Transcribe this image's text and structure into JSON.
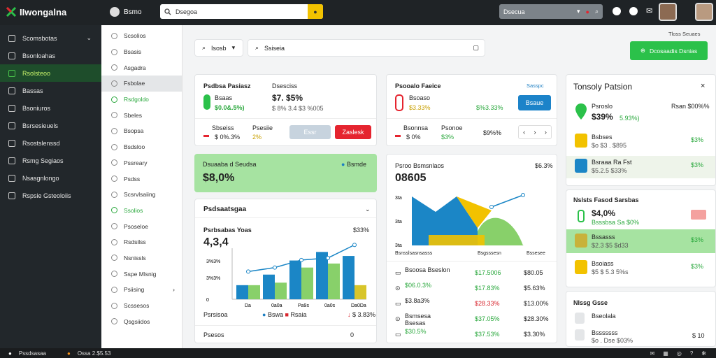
{
  "app": {
    "title": "IIwongalna",
    "user_label": "Bsmo"
  },
  "search": {
    "placeholder": "Dsegoa"
  },
  "top_select": {
    "label": "Dsecua"
  },
  "sidebar": {
    "items": [
      {
        "label": "Scomsbotas",
        "icon": "grid-icon"
      },
      {
        "label": "Bsonloahas",
        "icon": "circle-icon"
      },
      {
        "label": "Rsolsteoo",
        "icon": "doc-icon",
        "active": true
      },
      {
        "label": "Bassas",
        "icon": "layers-icon"
      },
      {
        "label": "Bsoniuros",
        "icon": "gear-icon"
      },
      {
        "label": "Bsrsesieuels",
        "icon": "user-icon"
      },
      {
        "label": "Rsostslenssd",
        "icon": "chart-icon"
      },
      {
        "label": "Rsmg Segiaos",
        "icon": "box-icon"
      },
      {
        "label": "Nsasgnlongo",
        "icon": "bell-icon"
      },
      {
        "label": "Rspsie Gsteoloiis",
        "icon": "settings-icon"
      }
    ]
  },
  "subnav": {
    "items": [
      {
        "label": "Scsolios"
      },
      {
        "label": "Bsasis"
      },
      {
        "label": "Asgadra"
      },
      {
        "label": "Fsbolae",
        "active": true
      },
      {
        "label": "Rsdgoldo",
        "green": true
      },
      {
        "label": "Sbeles"
      },
      {
        "label": "Bsopsa"
      },
      {
        "label": "Bsdsloo"
      },
      {
        "label": "Pssreary"
      },
      {
        "label": "Psdss"
      },
      {
        "label": "Scsrvlsaiing"
      },
      {
        "label": "Ssolios",
        "green": true
      },
      {
        "label": "Psoseloe"
      },
      {
        "label": "Rsdsilss"
      },
      {
        "label": "Nsnissls"
      },
      {
        "label": "Sspe Mlsnig"
      },
      {
        "label": "Psiising"
      },
      {
        "label": "Scssesos"
      },
      {
        "label": "Qsgsiidos"
      }
    ]
  },
  "filters": {
    "select_label": "Isosb",
    "search_placeholder": "Ssiseia"
  },
  "top_right": {
    "small_label": "Tloss Seuaes",
    "button_label": "Dcosaadis  Dsnias"
  },
  "card1": {
    "title": "Psdbsa Pasiasz",
    "name": "Bsaas",
    "value_green": "$0.0&.5%)",
    "col2_label": "Dsesciss",
    "col2_value": "$7. $5%",
    "col2_sub": "$ 8% 3.4 $3 %005",
    "row2_label": "Sbseiss",
    "row2_value": "$ 0%.3%",
    "row2_label2": "Psesiie",
    "row2_value2": "2%",
    "grey_btn": "Essr",
    "red_btn": "Zaslesk"
  },
  "card2": {
    "title": "Psooalo Faeice",
    "badge": "Sasspc",
    "name": "Bsoaso",
    "value": "$3.33%",
    "value_green": "$%3.33%",
    "blue_btn": "Bsaue",
    "row2_label": "Bsonnsa",
    "row2_value": "$ 0%",
    "row2_label2": "Psonoe",
    "row2_value2": "$3%",
    "row2_right": "$9%%",
    "pager_prev": "‹",
    "pager_mid": "›",
    "pager_next": "›"
  },
  "banner": {
    "label": "Dsuaaba d Seudsa",
    "right_label": "Bsmde",
    "value": "$8,0%"
  },
  "chart_panel": {
    "title": "Psdsaatsgaa",
    "subtitle": "Psrbsabas Yoas",
    "big_value": "4,3,4",
    "right_value": "$33%",
    "y_ticks": [
      "3%3%",
      "3%3%",
      "0"
    ],
    "bottom_left": "Psrsisoa",
    "bottom_right": "$ 3.83%",
    "footer_left": "Psesos",
    "footer_right": "0"
  },
  "chart_data": {
    "type": "bar",
    "categories": [
      "Da",
      "0a0a",
      "Pa9s",
      "0a0s",
      "Da0Da"
    ],
    "series": [
      {
        "name": "Bswa",
        "values": [
          0.28,
          0.49,
          0.77,
          0.94,
          0.86
        ],
        "color": "#1b86c6"
      },
      {
        "name": "Rsaia",
        "values": [
          0.28,
          0.33,
          0.63,
          0.71,
          0.28
        ],
        "color": "#88d06a"
      }
    ],
    "line": [
      0.55,
      0.63,
      0.78,
      0.82,
      1.08
    ]
  },
  "area_panel": {
    "title": "Psroo Bsmsnlaos",
    "big_value": "08605",
    "right_value": "$6.3%",
    "y_ticks": [
      "3ta",
      "3ta",
      "3ta"
    ],
    "x_left": "Bsnsslsasnsasss",
    "x_mid": "Bsgsssesn",
    "x_right": "Bssesee",
    "rows": [
      {
        "left": "Bsoosa Bseslon",
        "mid": "$17.5006",
        "right": "$80.05",
        "mid_color": "g"
      },
      {
        "left": "$06.0.3%",
        "mid": "$17.83%",
        "right": "$5.63%",
        "mid_color": "g",
        "left_color": "g"
      },
      {
        "left": "$3.8a3%",
        "mid": "$28.33%",
        "right": "$13.00%",
        "mid_color": "r"
      },
      {
        "left": "Bsmsesa",
        "left_sub": "Bsesas",
        "mid": "$37.05%",
        "right": "$28.30%",
        "mid_color": "g"
      },
      {
        "left": "$30.5%",
        "mid": "$37.53%",
        "right": "$3.30%",
        "mid_color": "g",
        "left_color": "g"
      }
    ]
  },
  "right_panel": {
    "title": "Tonsoly Patsion",
    "top": {
      "name": "Psroslo",
      "value": "$39%",
      "value_green": "5.93%)",
      "right_label": "Rsan $00%%"
    },
    "items": [
      {
        "name": "Bsbses",
        "sub": "$o $3 . $895",
        "value": "$3%",
        "color": "#f2c200"
      },
      {
        "name": "Bsraaa Ra Fst",
        "sub": "$5.2.5 $33%",
        "value": "$3%",
        "color": "#1b86c6",
        "highlight": true
      }
    ],
    "section2_title": "Nslsts Fasod Sarsbas",
    "s2_main": {
      "value": "$4,0%",
      "sub": "Bsssbsa Sa $0%"
    },
    "s2_items": [
      {
        "name": "Bssasss",
        "sub": "$2.3 $5 $d33",
        "value": "$3%",
        "color": "#c8b23a",
        "highlight": true
      },
      {
        "name": "Bsoiass",
        "sub": "$5 $ 5.3 5%s",
        "value": "$3%",
        "color": "#f2c200"
      }
    ],
    "section3_title": "Nlssg Gsse",
    "s3_items": [
      {
        "name": "Bseolala",
        "sub": "",
        "value": ""
      },
      {
        "name": "Bsssssss",
        "sub": "$o . Dse $03%",
        "value": "$ 10"
      }
    ]
  },
  "bottom": {
    "left": "Pssdsasaa",
    "mid": "Ossa 2.$5.53",
    "right": ""
  }
}
